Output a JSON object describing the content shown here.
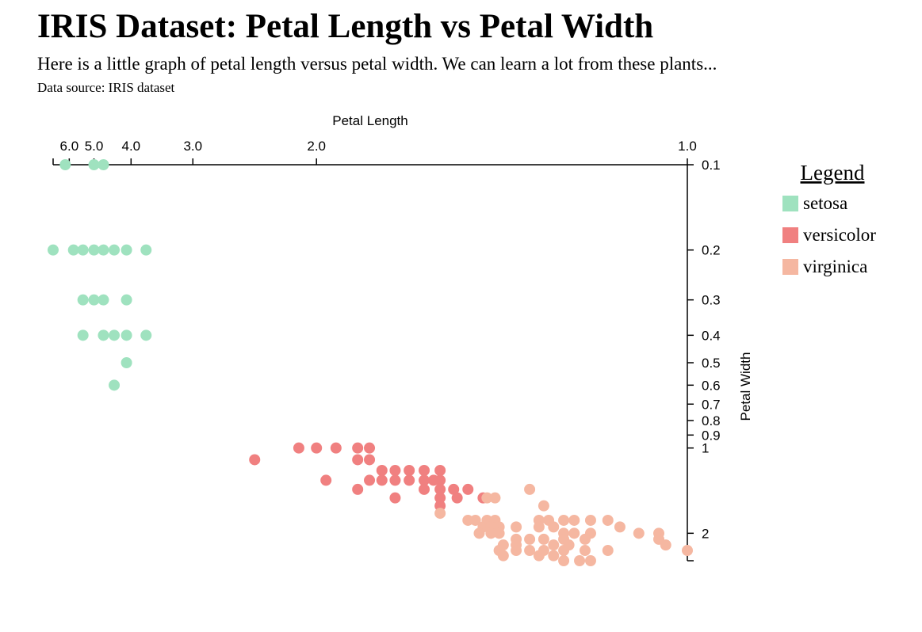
{
  "header": {
    "title": "IRIS Dataset: Petal Length vs Petal Width",
    "subtitle": "Here is a little graph of petal length versus petal width. We can learn a lot from these plants...",
    "source": "Data source: IRIS dataset"
  },
  "chart_data": {
    "type": "scatter",
    "xlabel": "Petal Length",
    "ylabel": "Petal Width",
    "x_axis_position": "top",
    "y_axis_position": "right",
    "x_scale": "reciprocal",
    "y_scale": "log",
    "xlim": [
      6.9,
      1.0
    ],
    "ylim": [
      0.1,
      2.5
    ],
    "x_ticks": [
      {
        "value": 6.0,
        "label": "6.0"
      },
      {
        "value": 5.0,
        "label": "5.0"
      },
      {
        "value": 4.0,
        "label": "4.0"
      },
      {
        "value": 3.0,
        "label": "3.0"
      },
      {
        "value": 2.0,
        "label": "2.0"
      },
      {
        "value": 1.0,
        "label": "1.0"
      }
    ],
    "y_ticks": [
      {
        "value": 0.1,
        "label": "0.1"
      },
      {
        "value": 0.2,
        "label": "0.2"
      },
      {
        "value": 0.3,
        "label": "0.3"
      },
      {
        "value": 0.4,
        "label": "0.4"
      },
      {
        "value": 0.5,
        "label": "0.5"
      },
      {
        "value": 0.6,
        "label": "0.6"
      },
      {
        "value": 0.7,
        "label": "0.7"
      },
      {
        "value": 0.8,
        "label": "0.8"
      },
      {
        "value": 0.9,
        "label": "0.9"
      },
      {
        "value": 1.0,
        "label": "1"
      },
      {
        "value": 2.0,
        "label": "2"
      }
    ],
    "grid": false,
    "legend": {
      "title": "Legend",
      "placement": "right",
      "entries": [
        {
          "label": "setosa",
          "color": "#9fe2bf"
        },
        {
          "label": "versicolor",
          "color": "#f08080"
        },
        {
          "label": "virginica",
          "color": "#f5b7a1"
        }
      ]
    },
    "series": [
      {
        "name": "setosa",
        "color": "#9fe2bf",
        "points": [
          [
            6.2,
            0.1
          ],
          [
            5.0,
            0.1
          ],
          [
            4.7,
            0.1
          ],
          [
            6.9,
            0.2
          ],
          [
            5.8,
            0.2
          ],
          [
            5.4,
            0.2
          ],
          [
            5.0,
            0.2
          ],
          [
            4.7,
            0.2
          ],
          [
            4.4,
            0.2
          ],
          [
            4.1,
            0.2
          ],
          [
            3.7,
            0.2
          ],
          [
            5.4,
            0.3
          ],
          [
            5.0,
            0.3
          ],
          [
            4.7,
            0.3
          ],
          [
            4.1,
            0.3
          ],
          [
            5.4,
            0.4
          ],
          [
            4.7,
            0.4
          ],
          [
            4.4,
            0.4
          ],
          [
            4.1,
            0.4
          ],
          [
            3.7,
            0.4
          ],
          [
            4.1,
            0.5
          ],
          [
            4.4,
            0.6
          ]
        ]
      },
      {
        "name": "versicolor",
        "color": "#f08080",
        "points": [
          [
            2.1,
            1.0
          ],
          [
            2.0,
            1.0
          ],
          [
            1.9,
            1.0
          ],
          [
            1.8,
            1.0
          ],
          [
            1.75,
            1.0
          ],
          [
            2.4,
            1.1
          ],
          [
            1.8,
            1.1
          ],
          [
            1.75,
            1.1
          ],
          [
            1.7,
            1.2
          ],
          [
            1.65,
            1.2
          ],
          [
            1.6,
            1.2
          ],
          [
            1.55,
            1.2
          ],
          [
            1.5,
            1.2
          ],
          [
            1.95,
            1.3
          ],
          [
            1.75,
            1.3
          ],
          [
            1.7,
            1.3
          ],
          [
            1.65,
            1.3
          ],
          [
            1.6,
            1.3
          ],
          [
            1.55,
            1.3
          ],
          [
            1.52,
            1.3
          ],
          [
            1.5,
            1.3
          ],
          [
            1.8,
            1.4
          ],
          [
            1.55,
            1.4
          ],
          [
            1.5,
            1.4
          ],
          [
            1.46,
            1.4
          ],
          [
            1.42,
            1.4
          ],
          [
            1.65,
            1.5
          ],
          [
            1.5,
            1.5
          ],
          [
            1.45,
            1.5
          ],
          [
            1.38,
            1.5
          ],
          [
            1.5,
            1.6
          ]
        ]
      },
      {
        "name": "virginica",
        "color": "#f5b7a1",
        "points": [
          [
            1.27,
            1.4
          ],
          [
            1.37,
            1.5
          ],
          [
            1.35,
            1.5
          ],
          [
            1.24,
            1.6
          ],
          [
            1.5,
            1.7
          ],
          [
            1.42,
            1.8
          ],
          [
            1.4,
            1.8
          ],
          [
            1.37,
            1.8
          ],
          [
            1.35,
            1.8
          ],
          [
            1.25,
            1.8
          ],
          [
            1.23,
            1.8
          ],
          [
            1.2,
            1.8
          ],
          [
            1.18,
            1.8
          ],
          [
            1.15,
            1.8
          ],
          [
            1.12,
            1.8
          ],
          [
            1.38,
            1.9
          ],
          [
            1.36,
            1.9
          ],
          [
            1.34,
            1.9
          ],
          [
            1.3,
            1.9
          ],
          [
            1.25,
            1.9
          ],
          [
            1.22,
            1.9
          ],
          [
            1.1,
            1.9
          ],
          [
            1.39,
            2.0
          ],
          [
            1.36,
            2.0
          ],
          [
            1.34,
            2.0
          ],
          [
            1.2,
            2.0
          ],
          [
            1.18,
            2.0
          ],
          [
            1.15,
            2.0
          ],
          [
            1.07,
            2.0
          ],
          [
            1.04,
            2.0
          ],
          [
            1.3,
            2.1
          ],
          [
            1.27,
            2.1
          ],
          [
            1.24,
            2.1
          ],
          [
            1.2,
            2.1
          ],
          [
            1.16,
            2.1
          ],
          [
            1.04,
            2.1
          ],
          [
            1.33,
            2.2
          ],
          [
            1.3,
            2.2
          ],
          [
            1.22,
            2.2
          ],
          [
            1.19,
            2.2
          ],
          [
            1.03,
            2.2
          ],
          [
            1.34,
            2.3
          ],
          [
            1.3,
            2.3
          ],
          [
            1.27,
            2.3
          ],
          [
            1.24,
            2.3
          ],
          [
            1.2,
            2.3
          ],
          [
            1.16,
            2.3
          ],
          [
            1.12,
            2.3
          ],
          [
            1.0,
            2.3
          ],
          [
            1.33,
            2.4
          ],
          [
            1.25,
            2.4
          ],
          [
            1.22,
            2.4
          ],
          [
            1.2,
            2.5
          ],
          [
            1.17,
            2.5
          ],
          [
            1.15,
            2.5
          ]
        ]
      }
    ]
  }
}
